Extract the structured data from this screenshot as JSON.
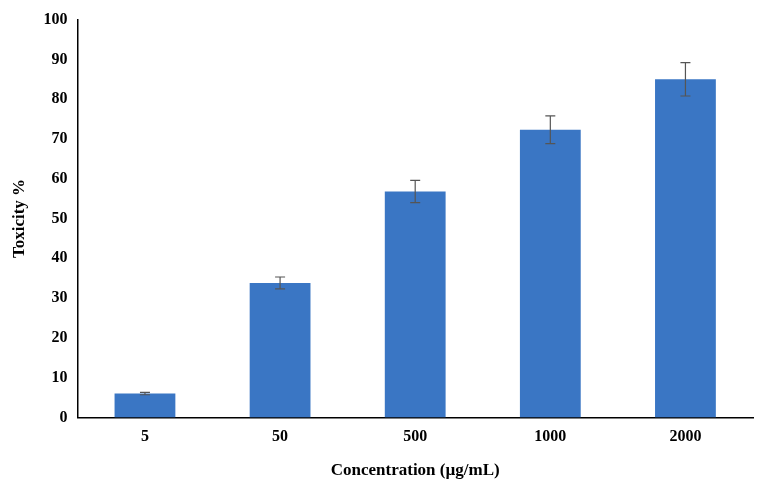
{
  "chart_data": {
    "type": "bar",
    "x_label": "Concentration (µg/mL)",
    "y_label": "Toxicity %",
    "categories": [
      "5",
      "50",
      "500",
      "1000",
      "2000"
    ],
    "values": [
      6.0,
      33.8,
      56.8,
      72.3,
      85.0
    ],
    "errors": [
      0.3,
      1.5,
      2.8,
      3.5,
      4.2
    ],
    "color": "#3a76c4",
    "ylim": [
      0,
      100
    ],
    "yticks": [
      0,
      10,
      20,
      30,
      40,
      50,
      60,
      70,
      80,
      90,
      100
    ],
    "grid": false
  }
}
